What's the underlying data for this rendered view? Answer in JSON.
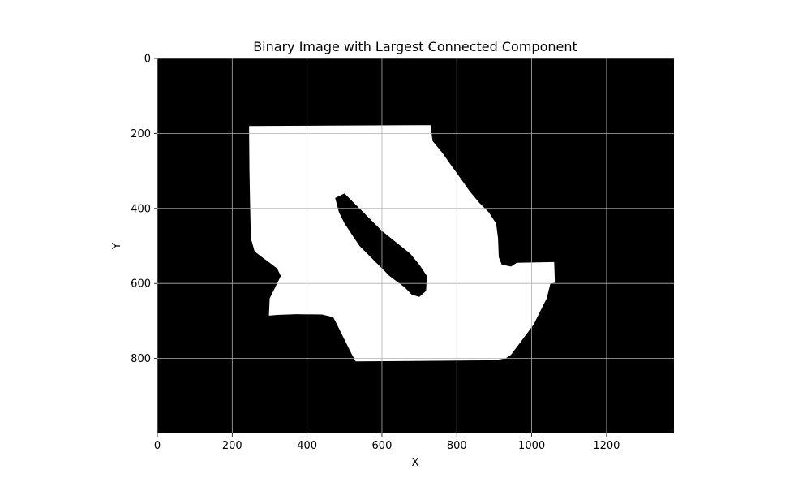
{
  "chart_data": {
    "type": "heatmap",
    "title": "Binary Image with Largest Connected Component",
    "xlabel": "X",
    "ylabel": "Y",
    "xlim": [
      0,
      1380
    ],
    "ylim": [
      1000,
      0
    ],
    "x_ticks": [
      0,
      200,
      400,
      600,
      800,
      1000,
      1200
    ],
    "y_ticks": [
      0,
      200,
      400,
      600,
      800
    ],
    "grid": true,
    "grid_color": "#b0b0b0",
    "colormap": [
      "#000000",
      "#ffffff"
    ],
    "background_value": 0,
    "component_value": 1,
    "component_outline": [
      [
        245,
        180
      ],
      [
        730,
        178
      ],
      [
        735,
        220
      ],
      [
        760,
        250
      ],
      [
        785,
        285
      ],
      [
        810,
        320
      ],
      [
        835,
        355
      ],
      [
        860,
        385
      ],
      [
        885,
        410
      ],
      [
        905,
        440
      ],
      [
        910,
        480
      ],
      [
        912,
        530
      ],
      [
        920,
        550
      ],
      [
        945,
        555
      ],
      [
        960,
        545
      ],
      [
        1060,
        543
      ],
      [
        1062,
        598
      ],
      [
        1050,
        600
      ],
      [
        1040,
        640
      ],
      [
        1030,
        660
      ],
      [
        1015,
        690
      ],
      [
        1005,
        710
      ],
      [
        990,
        730
      ],
      [
        975,
        750
      ],
      [
        960,
        770
      ],
      [
        945,
        790
      ],
      [
        930,
        800
      ],
      [
        900,
        805
      ],
      [
        530,
        808
      ],
      [
        520,
        790
      ],
      [
        510,
        770
      ],
      [
        500,
        750
      ],
      [
        490,
        730
      ],
      [
        480,
        710
      ],
      [
        470,
        690
      ],
      [
        440,
        683
      ],
      [
        370,
        682
      ],
      [
        320,
        684
      ],
      [
        298,
        686
      ],
      [
        300,
        640
      ],
      [
        320,
        600
      ],
      [
        330,
        580
      ],
      [
        320,
        560
      ],
      [
        300,
        545
      ],
      [
        280,
        530
      ],
      [
        260,
        515
      ],
      [
        250,
        480
      ],
      [
        248,
        400
      ],
      [
        246,
        300
      ],
      [
        245,
        180
      ]
    ],
    "hole_outline": [
      [
        475,
        372
      ],
      [
        500,
        360
      ],
      [
        520,
        380
      ],
      [
        540,
        400
      ],
      [
        560,
        420
      ],
      [
        580,
        440
      ],
      [
        600,
        460
      ],
      [
        625,
        480
      ],
      [
        650,
        500
      ],
      [
        675,
        520
      ],
      [
        700,
        550
      ],
      [
        720,
        580
      ],
      [
        718,
        620
      ],
      [
        700,
        636
      ],
      [
        680,
        630
      ],
      [
        660,
        610
      ],
      [
        640,
        595
      ],
      [
        620,
        580
      ],
      [
        600,
        560
      ],
      [
        580,
        540
      ],
      [
        560,
        520
      ],
      [
        540,
        500
      ],
      [
        520,
        470
      ],
      [
        500,
        440
      ],
      [
        485,
        410
      ],
      [
        475,
        372
      ]
    ]
  }
}
